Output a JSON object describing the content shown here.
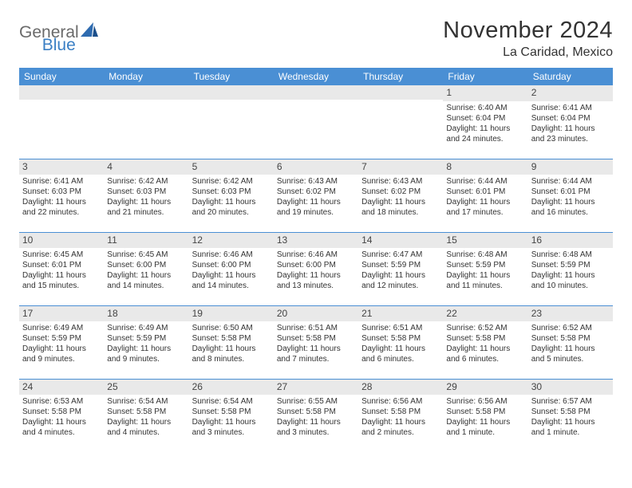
{
  "logo": {
    "general": "General",
    "blue": "Blue"
  },
  "title": "November 2024",
  "location": "La Caridad, Mexico",
  "header_color": "#4a8fd4",
  "border_color": "#4a8fd4",
  "daynum_bg": "#e9e9e9",
  "text_color": "#333333",
  "day_headers": [
    "Sunday",
    "Monday",
    "Tuesday",
    "Wednesday",
    "Thursday",
    "Friday",
    "Saturday"
  ],
  "weeks": [
    [
      {
        "num": "",
        "sunrise": "",
        "sunset": "",
        "daylight": ""
      },
      {
        "num": "",
        "sunrise": "",
        "sunset": "",
        "daylight": ""
      },
      {
        "num": "",
        "sunrise": "",
        "sunset": "",
        "daylight": ""
      },
      {
        "num": "",
        "sunrise": "",
        "sunset": "",
        "daylight": ""
      },
      {
        "num": "",
        "sunrise": "",
        "sunset": "",
        "daylight": ""
      },
      {
        "num": "1",
        "sunrise": "Sunrise: 6:40 AM",
        "sunset": "Sunset: 6:04 PM",
        "daylight": "Daylight: 11 hours and 24 minutes."
      },
      {
        "num": "2",
        "sunrise": "Sunrise: 6:41 AM",
        "sunset": "Sunset: 6:04 PM",
        "daylight": "Daylight: 11 hours and 23 minutes."
      }
    ],
    [
      {
        "num": "3",
        "sunrise": "Sunrise: 6:41 AM",
        "sunset": "Sunset: 6:03 PM",
        "daylight": "Daylight: 11 hours and 22 minutes."
      },
      {
        "num": "4",
        "sunrise": "Sunrise: 6:42 AM",
        "sunset": "Sunset: 6:03 PM",
        "daylight": "Daylight: 11 hours and 21 minutes."
      },
      {
        "num": "5",
        "sunrise": "Sunrise: 6:42 AM",
        "sunset": "Sunset: 6:03 PM",
        "daylight": "Daylight: 11 hours and 20 minutes."
      },
      {
        "num": "6",
        "sunrise": "Sunrise: 6:43 AM",
        "sunset": "Sunset: 6:02 PM",
        "daylight": "Daylight: 11 hours and 19 minutes."
      },
      {
        "num": "7",
        "sunrise": "Sunrise: 6:43 AM",
        "sunset": "Sunset: 6:02 PM",
        "daylight": "Daylight: 11 hours and 18 minutes."
      },
      {
        "num": "8",
        "sunrise": "Sunrise: 6:44 AM",
        "sunset": "Sunset: 6:01 PM",
        "daylight": "Daylight: 11 hours and 17 minutes."
      },
      {
        "num": "9",
        "sunrise": "Sunrise: 6:44 AM",
        "sunset": "Sunset: 6:01 PM",
        "daylight": "Daylight: 11 hours and 16 minutes."
      }
    ],
    [
      {
        "num": "10",
        "sunrise": "Sunrise: 6:45 AM",
        "sunset": "Sunset: 6:01 PM",
        "daylight": "Daylight: 11 hours and 15 minutes."
      },
      {
        "num": "11",
        "sunrise": "Sunrise: 6:45 AM",
        "sunset": "Sunset: 6:00 PM",
        "daylight": "Daylight: 11 hours and 14 minutes."
      },
      {
        "num": "12",
        "sunrise": "Sunrise: 6:46 AM",
        "sunset": "Sunset: 6:00 PM",
        "daylight": "Daylight: 11 hours and 14 minutes."
      },
      {
        "num": "13",
        "sunrise": "Sunrise: 6:46 AM",
        "sunset": "Sunset: 6:00 PM",
        "daylight": "Daylight: 11 hours and 13 minutes."
      },
      {
        "num": "14",
        "sunrise": "Sunrise: 6:47 AM",
        "sunset": "Sunset: 5:59 PM",
        "daylight": "Daylight: 11 hours and 12 minutes."
      },
      {
        "num": "15",
        "sunrise": "Sunrise: 6:48 AM",
        "sunset": "Sunset: 5:59 PM",
        "daylight": "Daylight: 11 hours and 11 minutes."
      },
      {
        "num": "16",
        "sunrise": "Sunrise: 6:48 AM",
        "sunset": "Sunset: 5:59 PM",
        "daylight": "Daylight: 11 hours and 10 minutes."
      }
    ],
    [
      {
        "num": "17",
        "sunrise": "Sunrise: 6:49 AM",
        "sunset": "Sunset: 5:59 PM",
        "daylight": "Daylight: 11 hours and 9 minutes."
      },
      {
        "num": "18",
        "sunrise": "Sunrise: 6:49 AM",
        "sunset": "Sunset: 5:59 PM",
        "daylight": "Daylight: 11 hours and 9 minutes."
      },
      {
        "num": "19",
        "sunrise": "Sunrise: 6:50 AM",
        "sunset": "Sunset: 5:58 PM",
        "daylight": "Daylight: 11 hours and 8 minutes."
      },
      {
        "num": "20",
        "sunrise": "Sunrise: 6:51 AM",
        "sunset": "Sunset: 5:58 PM",
        "daylight": "Daylight: 11 hours and 7 minutes."
      },
      {
        "num": "21",
        "sunrise": "Sunrise: 6:51 AM",
        "sunset": "Sunset: 5:58 PM",
        "daylight": "Daylight: 11 hours and 6 minutes."
      },
      {
        "num": "22",
        "sunrise": "Sunrise: 6:52 AM",
        "sunset": "Sunset: 5:58 PM",
        "daylight": "Daylight: 11 hours and 6 minutes."
      },
      {
        "num": "23",
        "sunrise": "Sunrise: 6:52 AM",
        "sunset": "Sunset: 5:58 PM",
        "daylight": "Daylight: 11 hours and 5 minutes."
      }
    ],
    [
      {
        "num": "24",
        "sunrise": "Sunrise: 6:53 AM",
        "sunset": "Sunset: 5:58 PM",
        "daylight": "Daylight: 11 hours and 4 minutes."
      },
      {
        "num": "25",
        "sunrise": "Sunrise: 6:54 AM",
        "sunset": "Sunset: 5:58 PM",
        "daylight": "Daylight: 11 hours and 4 minutes."
      },
      {
        "num": "26",
        "sunrise": "Sunrise: 6:54 AM",
        "sunset": "Sunset: 5:58 PM",
        "daylight": "Daylight: 11 hours and 3 minutes."
      },
      {
        "num": "27",
        "sunrise": "Sunrise: 6:55 AM",
        "sunset": "Sunset: 5:58 PM",
        "daylight": "Daylight: 11 hours and 3 minutes."
      },
      {
        "num": "28",
        "sunrise": "Sunrise: 6:56 AM",
        "sunset": "Sunset: 5:58 PM",
        "daylight": "Daylight: 11 hours and 2 minutes."
      },
      {
        "num": "29",
        "sunrise": "Sunrise: 6:56 AM",
        "sunset": "Sunset: 5:58 PM",
        "daylight": "Daylight: 11 hours and 1 minute."
      },
      {
        "num": "30",
        "sunrise": "Sunrise: 6:57 AM",
        "sunset": "Sunset: 5:58 PM",
        "daylight": "Daylight: 11 hours and 1 minute."
      }
    ]
  ]
}
